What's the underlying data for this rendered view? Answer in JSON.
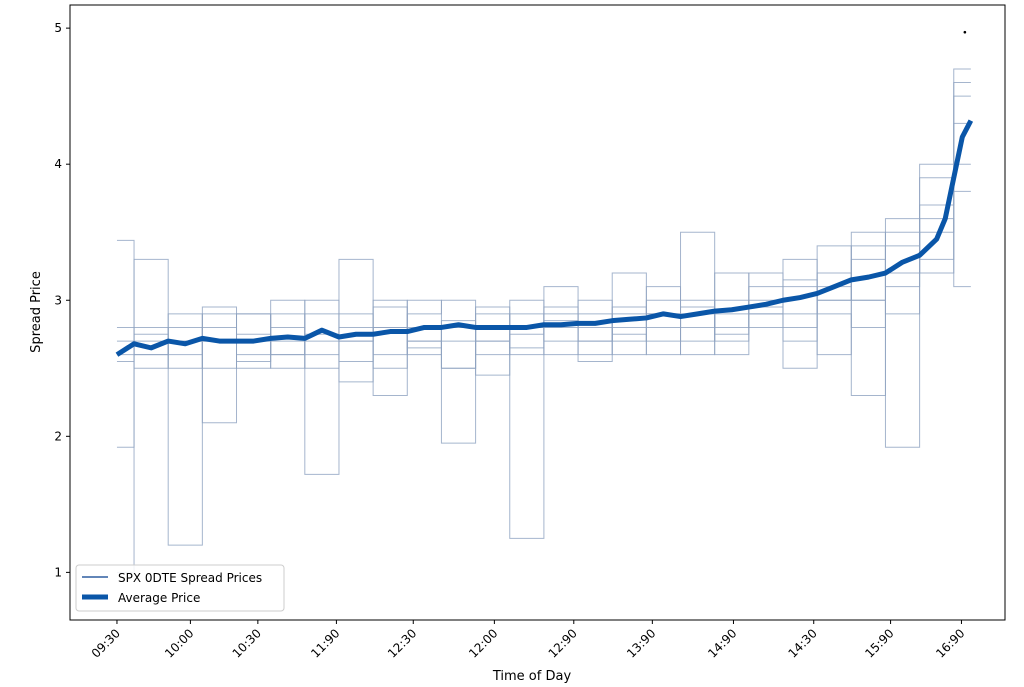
{
  "chart_data": {
    "type": "line",
    "title": "",
    "xlabel": "Time of Day",
    "ylabel": "Spread Price",
    "xlim": [
      -5.5,
      104
    ],
    "ylim": [
      0.65,
      5.17
    ],
    "yticks": [
      1,
      2,
      3,
      4,
      5
    ],
    "xticks": [
      {
        "x": 0,
        "label": "09:30"
      },
      {
        "x": 8.6,
        "label": "10:00"
      },
      {
        "x": 16.5,
        "label": "10:30"
      },
      {
        "x": 25.7,
        "label": "11:90"
      },
      {
        "x": 34.7,
        "label": "12:30"
      },
      {
        "x": 44.2,
        "label": "12:00"
      },
      {
        "x": 53.5,
        "label": "12:90"
      },
      {
        "x": 62.7,
        "label": "13:90"
      },
      {
        "x": 72.2,
        "label": "14:90"
      },
      {
        "x": 81.6,
        "label": "14:30"
      },
      {
        "x": 90.6,
        "label": "15:90"
      },
      {
        "x": 98.9,
        "label": "16:90"
      }
    ],
    "legend": {
      "placement": "lower-left",
      "entries": [
        "SPX 0DTE Spread Prices",
        "Average Price"
      ]
    },
    "colors": {
      "individual": "#8fa3c0",
      "average": "#0a56a8",
      "legend_individual": "#2f5fa0"
    },
    "individual_x": [
      0,
      4,
      8,
      12,
      16,
      20,
      24,
      28,
      32,
      36,
      40,
      44,
      48,
      52,
      56,
      60,
      64,
      68,
      72,
      76,
      80,
      84,
      88,
      92,
      96,
      100
    ],
    "series": [
      {
        "name": "SPX 0DTE Spread Prices",
        "values": [
          3.44,
          2.6,
          2.9,
          2.7,
          2.55,
          2.8,
          2.5,
          2.7,
          2.95,
          2.6,
          2.8,
          2.45,
          2.9,
          2.7,
          3.0,
          2.75,
          2.6,
          2.95,
          2.8,
          3.1,
          2.9,
          3.2,
          3.0,
          3.5,
          3.3,
          4.6
        ]
      },
      {
        "name": "SPX 0DTE Spread Prices",
        "values": [
          1.0,
          2.7,
          2.5,
          2.9,
          2.75,
          2.6,
          3.0,
          2.55,
          2.8,
          2.7,
          2.5,
          2.95,
          2.6,
          2.85,
          2.7,
          3.2,
          2.9,
          2.7,
          3.0,
          2.8,
          3.3,
          3.0,
          2.8,
          3.6,
          3.2,
          4.7
        ]
      },
      {
        "name": "SPX 0DTE Spread Prices",
        "values": [
          2.6,
          3.3,
          2.7,
          2.5,
          2.9,
          2.7,
          2.6,
          3.3,
          2.5,
          2.9,
          3.0,
          2.7,
          1.25,
          2.8,
          2.6,
          2.9,
          3.0,
          3.5,
          2.75,
          2.9,
          3.1,
          2.6,
          3.4,
          2.9,
          3.9,
          4.3
        ]
      },
      {
        "name": "SPX 0DTE Spread Prices",
        "values": [
          1.92,
          2.8,
          1.2,
          2.7,
          2.9,
          2.6,
          2.75,
          2.4,
          2.8,
          3.0,
          2.7,
          2.9,
          2.65,
          3.1,
          2.8,
          2.7,
          2.9,
          2.8,
          3.2,
          2.9,
          2.7,
          3.4,
          3.0,
          1.92,
          3.6,
          3.1
        ]
      },
      {
        "name": "SPX 0DTE Spread Prices",
        "values": [
          2.7,
          2.5,
          2.8,
          2.1,
          2.6,
          2.9,
          1.72,
          2.8,
          2.3,
          2.7,
          2.5,
          2.8,
          3.0,
          2.6,
          2.9,
          2.6,
          2.8,
          2.9,
          2.7,
          3.0,
          2.5,
          3.1,
          3.3,
          3.2,
          3.7,
          4.5
        ]
      },
      {
        "name": "SPX 0DTE Spread Prices",
        "values": [
          2.8,
          2.6,
          2.7,
          2.95,
          2.5,
          3.0,
          2.7,
          2.9,
          2.6,
          2.8,
          1.95,
          2.7,
          2.8,
          2.95,
          2.7,
          2.8,
          3.1,
          2.6,
          2.9,
          3.2,
          2.8,
          3.0,
          3.5,
          3.1,
          4.0,
          4.0
        ]
      },
      {
        "name": "SPX 0DTE Spread Prices",
        "values": [
          2.55,
          2.75,
          2.6,
          2.8,
          2.7,
          2.5,
          2.9,
          2.7,
          3.0,
          2.65,
          2.85,
          2.6,
          2.75,
          2.9,
          2.55,
          2.95,
          2.7,
          3.0,
          2.6,
          2.95,
          3.15,
          2.9,
          2.3,
          3.4,
          3.5,
          3.8
        ]
      }
    ],
    "average": {
      "name": "Average Price",
      "x": [
        0,
        2,
        4,
        6,
        8,
        10,
        12,
        14,
        16,
        18,
        20,
        22,
        24,
        26,
        28,
        30,
        32,
        34,
        36,
        38,
        40,
        42,
        44,
        46,
        48,
        50,
        52,
        54,
        56,
        58,
        60,
        62,
        64,
        66,
        68,
        70,
        72,
        74,
        76,
        78,
        80,
        82,
        84,
        86,
        88,
        90,
        92,
        94,
        96,
        97,
        98,
        99,
        100
      ],
      "y": [
        2.6,
        2.68,
        2.65,
        2.7,
        2.68,
        2.72,
        2.7,
        2.7,
        2.7,
        2.72,
        2.73,
        2.72,
        2.78,
        2.73,
        2.75,
        2.75,
        2.77,
        2.77,
        2.8,
        2.8,
        2.82,
        2.8,
        2.8,
        2.8,
        2.8,
        2.82,
        2.82,
        2.83,
        2.83,
        2.85,
        2.86,
        2.87,
        2.9,
        2.88,
        2.9,
        2.92,
        2.93,
        2.95,
        2.97,
        3.0,
        3.02,
        3.05,
        3.1,
        3.15,
        3.17,
        3.2,
        3.28,
        3.33,
        3.45,
        3.6,
        3.9,
        4.2,
        4.32
      ]
    },
    "outlier_point": {
      "x": 99.3,
      "y": 4.97
    }
  }
}
